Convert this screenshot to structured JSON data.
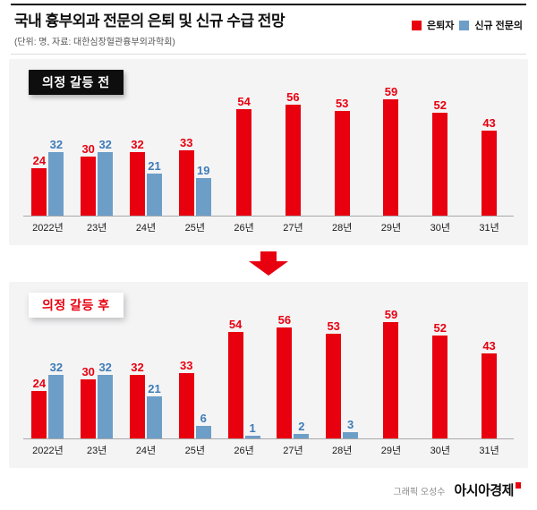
{
  "header": {
    "title": "국내 흉부외과 전문의 은퇴 및 신규 수급 전망",
    "subtitle": "(단위: 명, 자료: 대한심장혈관흉부외과학회)"
  },
  "legend": {
    "items": [
      {
        "label": "은퇴자",
        "color": "#e8000f"
      },
      {
        "label": "신규 전문의",
        "color": "#6d9ec8"
      }
    ]
  },
  "chart_data": [
    {
      "type": "bar",
      "title": "의정 갈등 전",
      "categories": [
        "2022년",
        "23년",
        "24년",
        "25년",
        "26년",
        "27년",
        "28년",
        "29년",
        "30년",
        "31년"
      ],
      "series": [
        {
          "name": "은퇴자",
          "color": "#e8000f",
          "label_color": "#e8000f",
          "values": [
            24,
            30,
            32,
            33,
            54,
            56,
            53,
            59,
            52,
            43
          ]
        },
        {
          "name": "신규 전문의",
          "color": "#6d9ec8",
          "label_color": "#3e7cb6",
          "values": [
            32,
            32,
            21,
            19,
            null,
            null,
            null,
            null,
            null,
            null
          ]
        }
      ],
      "xlabel": "",
      "ylabel": "",
      "ylim": [
        0,
        62
      ],
      "grid": false,
      "legend_position": "top-right"
    },
    {
      "type": "bar",
      "title": "의정 갈등 후",
      "categories": [
        "2022년",
        "23년",
        "24년",
        "25년",
        "26년",
        "27년",
        "28년",
        "29년",
        "30년",
        "31년"
      ],
      "series": [
        {
          "name": "은퇴자",
          "color": "#e8000f",
          "label_color": "#e8000f",
          "values": [
            24,
            30,
            32,
            33,
            54,
            56,
            53,
            59,
            52,
            43
          ]
        },
        {
          "name": "신규 전문의",
          "color": "#6d9ec8",
          "label_color": "#3e7cb6",
          "values": [
            32,
            32,
            21,
            6,
            1,
            2,
            3,
            null,
            null,
            null
          ]
        }
      ],
      "xlabel": "",
      "ylabel": "",
      "ylim": [
        0,
        62
      ],
      "grid": false,
      "legend_position": "top-right"
    }
  ],
  "icons": {
    "down_arrow": "red-down-arrow",
    "brand_mark": "red-square"
  },
  "footer": {
    "credit": "그래픽 오성수",
    "brand": "아시아경제"
  }
}
